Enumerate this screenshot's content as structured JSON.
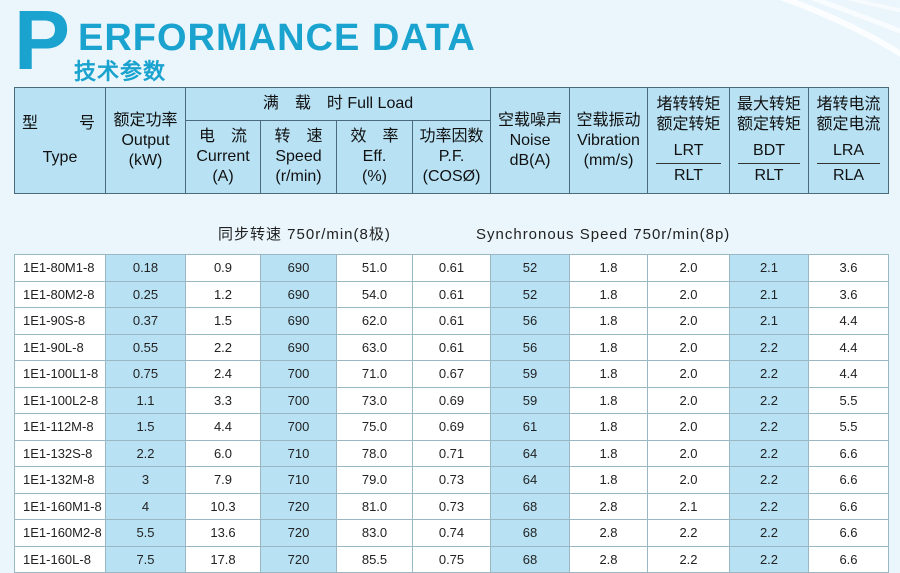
{
  "title": {
    "letter": "P",
    "rest": "ERFORMANCE DATA",
    "cn": "技术参数"
  },
  "header": {
    "type_cn": "型　　号",
    "type_en": "Type",
    "output_cn": "额定功率",
    "output_en": "Output",
    "output_unit": "(kW)",
    "full_load": "满　载　时 Full Load",
    "current_cn": "电　流",
    "current_en": "Current",
    "current_unit": "(A)",
    "speed_cn": "转　速",
    "speed_en": "Speed",
    "speed_unit": "(r/min)",
    "eff_cn": "效　率",
    "eff_en": "Eff.",
    "eff_unit": "(%)",
    "pf_cn": "功率因数",
    "pf_en": "P.F.",
    "pf_unit": "(COSØ)",
    "noise_cn": "空载噪声",
    "noise_en": "Noise",
    "noise_unit": "dB(A)",
    "vib_cn": "空载振动",
    "vib_en": "Vibration",
    "vib_unit": "(mm/s)",
    "lrt_cn1": "堵转转矩",
    "lrt_cn2": "额定转矩",
    "lrt_top": "LRT",
    "lrt_bot": "RLT",
    "bdt_cn1": "最大转矩",
    "bdt_cn2": "额定转矩",
    "bdt_top": "BDT",
    "bdt_bot": "RLT",
    "lra_cn1": "堵转电流",
    "lra_cn2": "额定电流",
    "lra_top": "LRA",
    "lra_bot": "RLA"
  },
  "caption": {
    "cn": "同步转速 750r/min(8极)",
    "en": "Synchronous Speed 750r/min(8p)"
  },
  "rows": [
    [
      "1E1-80M1-8",
      "0.18",
      "0.9",
      "690",
      "51.0",
      "0.61",
      "52",
      "1.8",
      "2.0",
      "2.1",
      "3.6"
    ],
    [
      "1E1-80M2-8",
      "0.25",
      "1.2",
      "690",
      "54.0",
      "0.61",
      "52",
      "1.8",
      "2.0",
      "2.1",
      "3.6"
    ],
    [
      "1E1-90S-8",
      "0.37",
      "1.5",
      "690",
      "62.0",
      "0.61",
      "56",
      "1.8",
      "2.0",
      "2.1",
      "4.4"
    ],
    [
      "1E1-90L-8",
      "0.55",
      "2.2",
      "690",
      "63.0",
      "0.61",
      "56",
      "1.8",
      "2.0",
      "2.2",
      "4.4"
    ],
    [
      "1E1-100L1-8",
      "0.75",
      "2.4",
      "700",
      "71.0",
      "0.67",
      "59",
      "1.8",
      "2.0",
      "2.2",
      "4.4"
    ],
    [
      "1E1-100L2-8",
      "1.1",
      "3.3",
      "700",
      "73.0",
      "0.69",
      "59",
      "1.8",
      "2.0",
      "2.2",
      "5.5"
    ],
    [
      "1E1-112M-8",
      "1.5",
      "4.4",
      "700",
      "75.0",
      "0.69",
      "61",
      "1.8",
      "2.0",
      "2.2",
      "5.5"
    ],
    [
      "1E1-132S-8",
      "2.2",
      "6.0",
      "710",
      "78.0",
      "0.71",
      "64",
      "1.8",
      "2.0",
      "2.2",
      "6.6"
    ],
    [
      "1E1-132M-8",
      "3",
      "7.9",
      "710",
      "79.0",
      "0.73",
      "64",
      "1.8",
      "2.0",
      "2.2",
      "6.6"
    ],
    [
      "1E1-160M1-8",
      "4",
      "10.3",
      "720",
      "81.0",
      "0.73",
      "68",
      "2.8",
      "2.1",
      "2.2",
      "6.6"
    ],
    [
      "1E1-160M2-8",
      "5.5",
      "13.6",
      "720",
      "83.0",
      "0.74",
      "68",
      "2.8",
      "2.2",
      "2.2",
      "6.6"
    ],
    [
      "1E1-160L-8",
      "7.5",
      "17.8",
      "720",
      "85.5",
      "0.75",
      "68",
      "2.8",
      "2.2",
      "2.2",
      "6.6"
    ]
  ],
  "highlight_columns": [
    1,
    3,
    6,
    9
  ],
  "colors": {
    "accent": "#1aa3cf",
    "header_bg": "#b8e2f4",
    "page_bg": "#eaf6fc"
  }
}
